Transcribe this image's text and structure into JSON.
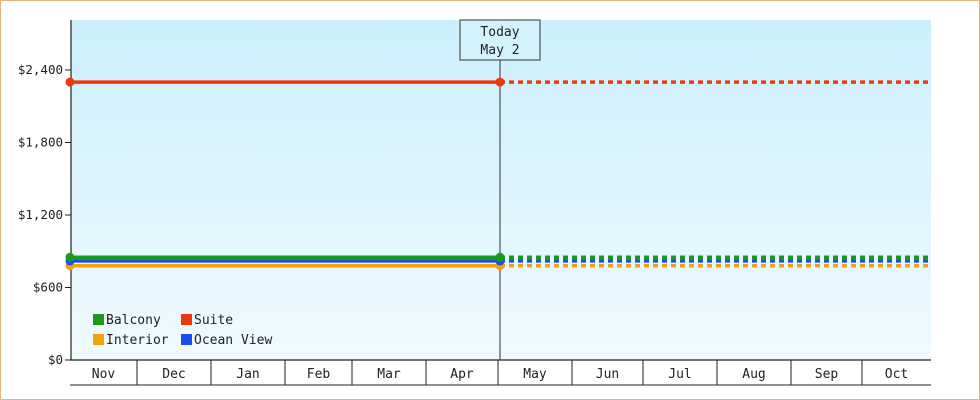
{
  "chart_data": {
    "type": "line",
    "title": "",
    "xlabel": "",
    "ylabel": "",
    "ylim": [
      0,
      2400
    ],
    "y_ticks": [
      "$0",
      "$600",
      "$1,200",
      "$1,800",
      "$2,400"
    ],
    "y_tick_values": [
      0,
      600,
      1200,
      1800,
      2400
    ],
    "categories": [
      "Nov",
      "Dec",
      "Jan",
      "Feb",
      "Mar",
      "Apr",
      "May",
      "Jun",
      "Jul",
      "Aug",
      "Sep",
      "Oct"
    ],
    "today": {
      "line1": "Today",
      "line2": "May 2"
    },
    "legend_placement": "bottom-left",
    "grid": false,
    "series": [
      {
        "name": "Balcony",
        "color": "#1a9a1a",
        "value": 850
      },
      {
        "name": "Suite",
        "color": "#ee3a0a",
        "value": 2300
      },
      {
        "name": "Interior",
        "color": "#f5a10a",
        "value": 780
      },
      {
        "name": "Ocean View",
        "color": "#1a4cf0",
        "value": 820
      }
    ],
    "legend_order": [
      [
        "Balcony",
        "Suite"
      ],
      [
        "Interior",
        "Ocean View"
      ]
    ]
  }
}
